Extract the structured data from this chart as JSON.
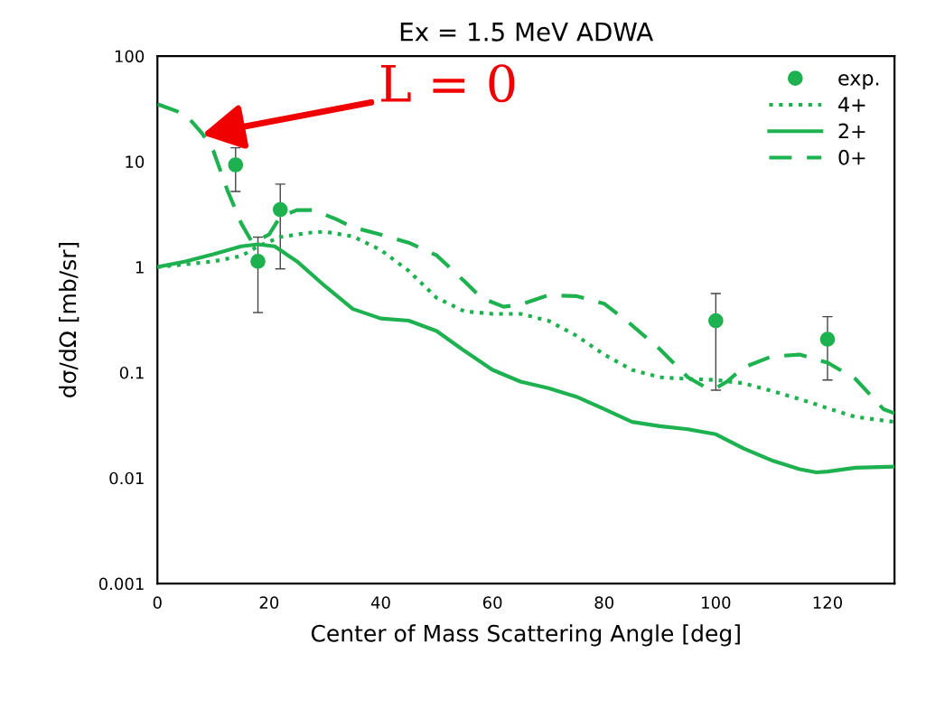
{
  "chart_data": {
    "type": "line",
    "title": "Ex = 1.5 MeV ADWA",
    "xlabel": "Center of Mass Scattering Angle [deg]",
    "ylabel": "dσ/dΩ [mb/sr]",
    "log": "y",
    "xlim": [
      0,
      132
    ],
    "xticks": [
      0,
      20,
      40,
      60,
      80,
      100,
      120
    ],
    "ylim": [
      0.001,
      100
    ],
    "yticks": [
      {
        "value": 0.001,
        "label": "0.001"
      },
      {
        "value": 0.01,
        "label": "0.01"
      },
      {
        "value": 0.1,
        "label": "0.1"
      },
      1,
      10,
      100
    ],
    "grid": false,
    "legend": "top right",
    "annotations": [
      {
        "text": "L = 0",
        "x": 8,
        "y": 18
      }
    ],
    "series": [
      {
        "name": "exp.",
        "type": "scatter",
        "marker": "circle",
        "color": "#1db14f",
        "x": [
          14,
          18,
          22,
          100,
          120
        ],
        "values": [
          9.3,
          1.13,
          3.5,
          0.31,
          0.207
        ],
        "errors": [
          [
            5.2,
            13.5
          ],
          [
            0.37,
            1.92
          ],
          [
            0.96,
            6.1
          ],
          [
            0.068,
            0.56
          ],
          [
            0.085,
            0.338
          ]
        ]
      },
      {
        "name": "4+",
        "line_style": "dotted",
        "color": "#1db14f",
        "x": [
          0,
          5,
          10,
          15,
          18,
          22,
          27,
          30,
          35,
          40,
          45,
          50,
          55,
          60,
          65,
          70,
          75,
          80,
          85,
          90,
          95,
          100,
          105,
          110,
          115,
          120,
          125,
          132
        ],
        "values": [
          1.0,
          1.06,
          1.13,
          1.27,
          1.57,
          1.92,
          2.11,
          2.16,
          1.95,
          1.45,
          0.92,
          0.51,
          0.38,
          0.36,
          0.36,
          0.31,
          0.224,
          0.148,
          0.106,
          0.09,
          0.087,
          0.085,
          0.079,
          0.067,
          0.056,
          0.046,
          0.038,
          0.034
        ]
      },
      {
        "name": "2+",
        "line_style": "solid",
        "color": "#1db14f",
        "x": [
          0,
          5,
          10,
          15,
          18,
          21,
          25,
          30,
          35,
          40,
          45,
          50,
          55,
          60,
          65,
          70,
          75,
          80,
          85,
          90,
          95,
          100,
          105,
          110,
          115,
          118,
          120,
          125,
          132
        ],
        "values": [
          1.0,
          1.13,
          1.32,
          1.57,
          1.64,
          1.57,
          1.13,
          0.66,
          0.4,
          0.325,
          0.31,
          0.247,
          0.16,
          0.106,
          0.082,
          0.071,
          0.059,
          0.045,
          0.034,
          0.031,
          0.029,
          0.026,
          0.019,
          0.0147,
          0.0121,
          0.0113,
          0.0115,
          0.0125,
          0.0128
        ]
      },
      {
        "name": "0+",
        "line_style": "dashed",
        "color": "#1db14f",
        "x": [
          0,
          5,
          8,
          10,
          12.5,
          15,
          17,
          20,
          22,
          25,
          28,
          32,
          35,
          40,
          45,
          50,
          55,
          58,
          62,
          65,
          70,
          75,
          80,
          85,
          90,
          95,
          98,
          100,
          102,
          105,
          110,
          115,
          120,
          125,
          130,
          132
        ],
        "values": [
          35,
          28,
          18.5,
          12.7,
          5.4,
          2.6,
          1.7,
          2.03,
          3.0,
          3.46,
          3.46,
          2.84,
          2.38,
          2.03,
          1.7,
          1.29,
          0.73,
          0.51,
          0.42,
          0.44,
          0.54,
          0.53,
          0.45,
          0.28,
          0.166,
          0.09,
          0.073,
          0.071,
          0.082,
          0.112,
          0.142,
          0.148,
          0.124,
          0.087,
          0.045,
          0.041
        ]
      }
    ]
  }
}
